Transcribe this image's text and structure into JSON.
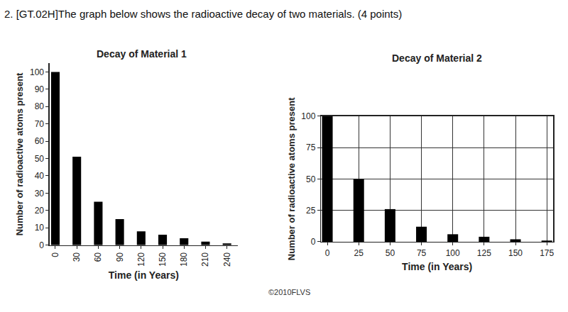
{
  "header": "2. [GT.02H]The graph below shows the radioactive decay of two materials. (4 points)",
  "credit": "©2010FLVS",
  "chart_data": [
    {
      "type": "bar",
      "title": "Decay of Material 1",
      "x_label": "Time (in Years)",
      "y_label": "Number of radioactive atoms present",
      "x": [
        0,
        30,
        60,
        90,
        120,
        150,
        180,
        210,
        240
      ],
      "values": [
        100,
        51,
        25,
        15,
        8,
        6,
        4,
        2,
        1
      ],
      "color": "#000000",
      "xlim": [
        -8,
        255
      ],
      "xticks": [
        0,
        30,
        60,
        90,
        120,
        150,
        180,
        210,
        240
      ],
      "ylim": [
        0,
        105
      ],
      "yticks": [
        0,
        10,
        20,
        30,
        40,
        50,
        60,
        70,
        80,
        90,
        100
      ],
      "grid": false
    },
    {
      "type": "bar",
      "title": "Decay of Material 2",
      "x_label": "Time (in Years)",
      "y_label": "Number of radioactive atoms present",
      "x": [
        0,
        25,
        50,
        75,
        100,
        125,
        150,
        175
      ],
      "values": [
        100,
        50,
        26,
        12,
        6,
        4,
        2,
        1
      ],
      "color": "#000000",
      "xlim": [
        -5,
        180
      ],
      "xticks": [
        0,
        25,
        50,
        75,
        100,
        125,
        150,
        175
      ],
      "ylim": [
        0,
        100
      ],
      "yticks": [
        0,
        25,
        50,
        75,
        100
      ],
      "grid": true
    }
  ]
}
